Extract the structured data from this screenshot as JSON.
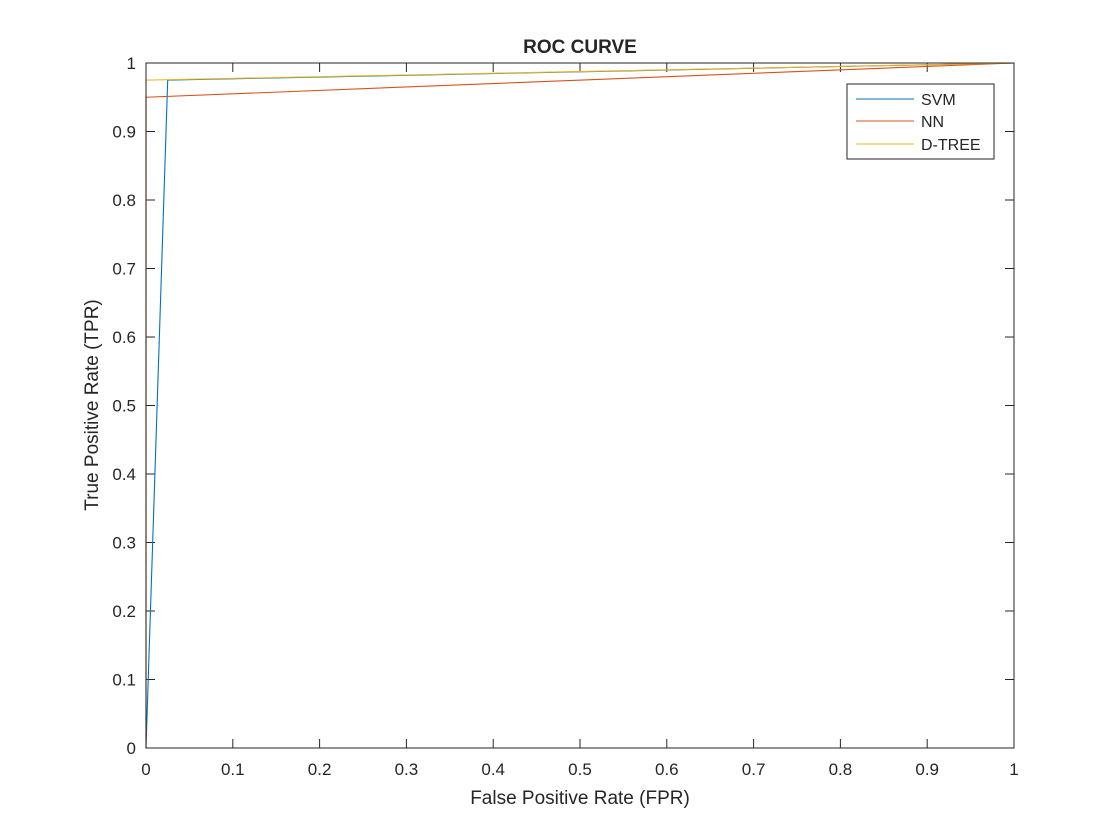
{
  "chart_data": {
    "type": "line",
    "title": "ROC CURVE",
    "xlabel": "False Positive Rate (FPR)",
    "ylabel": "True Positive Rate (TPR)",
    "xlim": [
      0,
      1
    ],
    "ylim": [
      0,
      1
    ],
    "xticks": [
      "0",
      "0.1",
      "0.2",
      "0.3",
      "0.4",
      "0.5",
      "0.6",
      "0.7",
      "0.8",
      "0.9",
      "1"
    ],
    "yticks": [
      "0",
      "0.1",
      "0.2",
      "0.3",
      "0.4",
      "0.5",
      "0.6",
      "0.7",
      "0.8",
      "0.9",
      "1"
    ],
    "grid": false,
    "legend_position": "top-right",
    "series": [
      {
        "name": "SVM",
        "color": "#0072bd",
        "x": [
          0,
          0.025,
          1
        ],
        "y": [
          0,
          0.975,
          1
        ]
      },
      {
        "name": "NN",
        "color": "#d95319",
        "x": [
          0,
          0,
          1
        ],
        "y": [
          0,
          0.95,
          1
        ]
      },
      {
        "name": "D-TREE",
        "color": "#edb120",
        "x": [
          0,
          0,
          1
        ],
        "y": [
          0,
          0.975,
          1
        ]
      }
    ]
  }
}
